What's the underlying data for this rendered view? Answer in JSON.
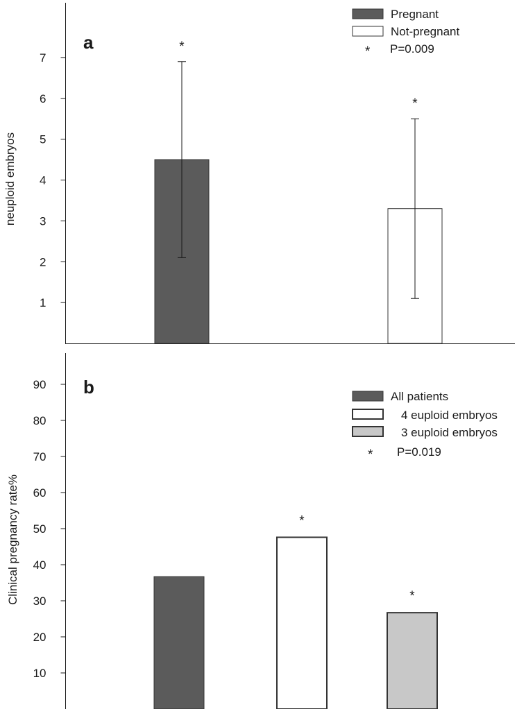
{
  "chart_data": [
    {
      "type": "bar",
      "panel_label": "a",
      "ylabel": "neuploid embryos",
      "categories": [
        "Pregnant",
        "Not-pregnant"
      ],
      "values": [
        4.5,
        3.3
      ],
      "error_low": [
        2.1,
        1.1
      ],
      "error_high": [
        6.9,
        5.5
      ],
      "ylim": [
        0,
        8
      ],
      "yticks": [
        1,
        2,
        3,
        4,
        5,
        6,
        7
      ],
      "colors": [
        "#5b5b5b",
        "#ffffff"
      ],
      "significance_marks": [
        "*",
        "*"
      ],
      "legend": {
        "position": "top-right",
        "entries": [
          {
            "label": "Pregnant",
            "color": "#5b5b5b"
          },
          {
            "label": "Not-pregnant",
            "color": "#ffffff"
          }
        ],
        "note_symbol": "*",
        "note": "P=0.009"
      },
      "grid": false
    },
    {
      "type": "bar",
      "panel_label": "b",
      "ylabel": "Clinical pregnancy rate%",
      "categories": [
        "All patients",
        "4 euploid embryos",
        "3 euploid embryos"
      ],
      "values": [
        36.7,
        47.6,
        26.7
      ],
      "ylim": [
        0,
        100
      ],
      "yticks": [
        10,
        20,
        30,
        40,
        50,
        60,
        70,
        80,
        90
      ],
      "colors": [
        "#5b5b5b",
        "#ffffff",
        "#c8c8c8"
      ],
      "significance_marks": [
        "",
        "*",
        "*"
      ],
      "legend": {
        "position": "top-right",
        "entries": [
          {
            "label": "All patients",
            "color": "#5b5b5b"
          },
          {
            "label": "4 euploid embryos",
            "color": "#ffffff"
          },
          {
            "label": "3 euploid embryos",
            "color": "#c8c8c8"
          }
        ],
        "note_symbol": "*",
        "note": "P=0.019"
      },
      "grid": false
    }
  ]
}
